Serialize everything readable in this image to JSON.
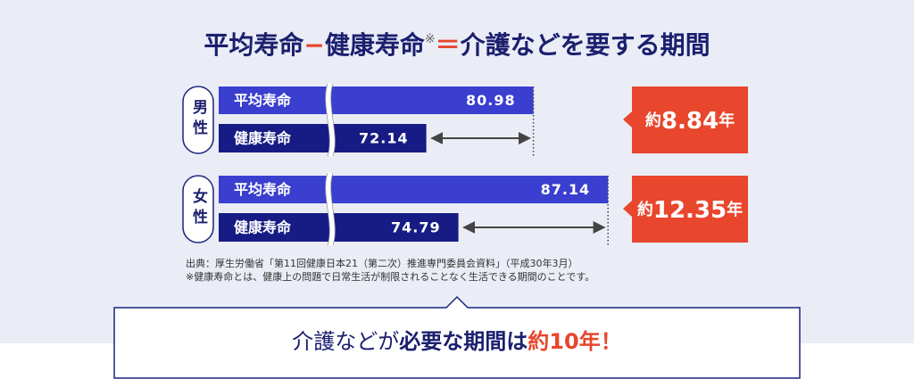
{
  "chart_data": {
    "type": "bar",
    "orientation": "horizontal",
    "title_parts": [
      "平均寿命",
      "−",
      "健康寿命",
      "※",
      "＝",
      "介護などを要する期間"
    ],
    "categories": [
      "男性",
      "女性"
    ],
    "series": [
      {
        "name": "平均寿命",
        "color": "#3a3fd0",
        "values": [
          80.98,
          87.14
        ]
      },
      {
        "name": "健康寿命",
        "color": "#161c84",
        "values": [
          72.14,
          74.79
        ]
      }
    ],
    "xlim": [
      55,
      90
    ],
    "axis_break": true,
    "differences": [
      8.84,
      12.35
    ],
    "difference_prefix": "約",
    "difference_unit": "年",
    "difference_color": "#e8462d",
    "notes": [
      "出典：厚生労働省「第11回健康日本21（第二次）推進専門委員会資料」（平成30年3月）",
      "※健康寿命とは、健康上の問題で日常生活が制限されることなく生活できる期間のことです。"
    ],
    "conclusion_parts": [
      "介護などが",
      "必要な期間は",
      "約10年！"
    ]
  }
}
